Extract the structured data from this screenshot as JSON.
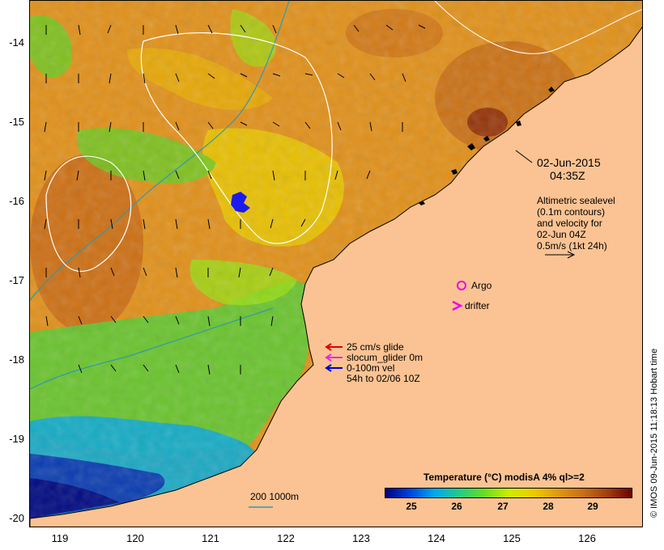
{
  "map": {
    "lat_labels": [
      "-14",
      "-15",
      "-16",
      "-17",
      "-18",
      "-19",
      "-20"
    ],
    "lon_labels": [
      "119",
      "120",
      "121",
      "122",
      "123",
      "124",
      "125",
      "126"
    ],
    "land_color": "#fbc393"
  },
  "annotations": {
    "date": "02-Jun-2015",
    "time": "04:35Z",
    "altimetry_line1": "Altimetric sealevel",
    "altimetry_line2": "(0.1m contours)",
    "altimetry_line3": "and velocity for",
    "altimetry_line4": "02-Jun 04Z",
    "altimetry_line5": "0.5m/s (1kt 24h)",
    "argo_label": "Argo",
    "drifter_label": "drifter",
    "glider_line1": "25 cm/s glide",
    "glider_line2": "slocum_glider 0m",
    "glider_line3": "0-100m vel",
    "glider_line4": "54h to 02/06 10Z",
    "bathy_label": "200  1000m"
  },
  "colorbar": {
    "title": "Temperature (°C) modisA 4% ql>=2",
    "ticks": [
      "25",
      "26",
      "27",
      "28",
      "29"
    ],
    "colors": [
      "#000080",
      "#0044dd",
      "#00aaee",
      "#22cc88",
      "#66dd22",
      "#ccee00",
      "#eecc00",
      "#e09a10",
      "#c87018",
      "#a04010",
      "#700000"
    ]
  },
  "credit": "© IMOS 09-Jun-2015 11:18:13 Hobart time",
  "legend_colors": {
    "glider_arrow": "#dd0000",
    "slocum_arrow": "#ee22ee",
    "vel_arrow": "#0000cc",
    "argo": "#ee00ee",
    "bathy_200": "#3399aa",
    "bathy_1000": "#ffffff"
  }
}
